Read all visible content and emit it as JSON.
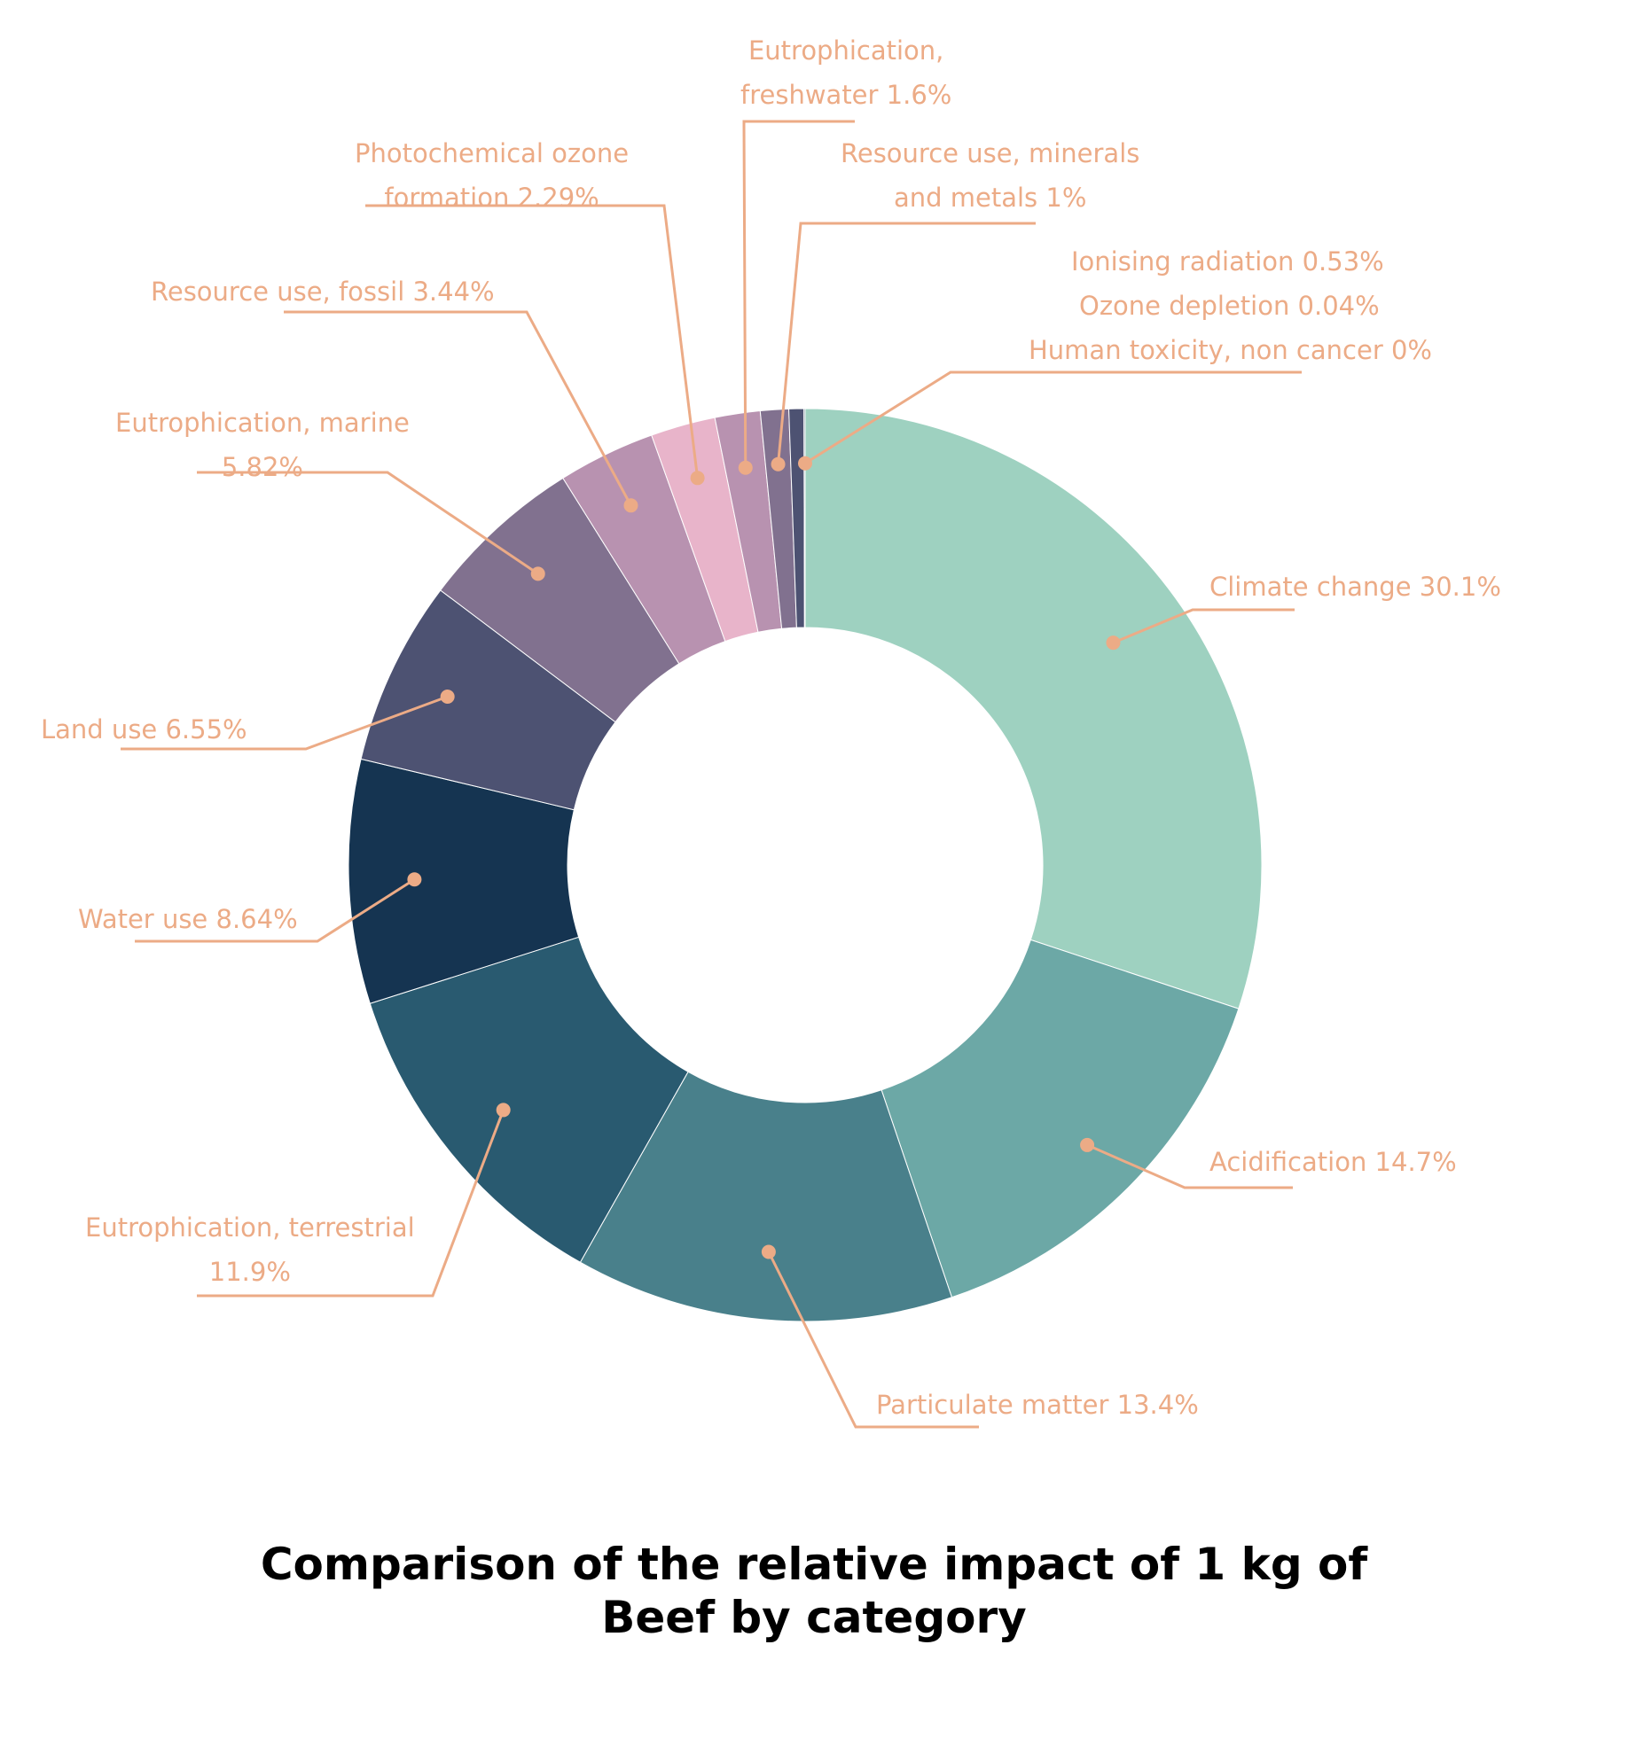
{
  "chart_data": {
    "type": "pie",
    "donut": true,
    "title_lines": [
      "Comparison of the relative impact of 1 kg of",
      "Beef by category"
    ],
    "label_color": "#ecab86",
    "slices": [
      {
        "category": "Climate change",
        "value": 30.1,
        "label_lines": [
          "Climate change 30.1%"
        ],
        "color": "#9ed1c0"
      },
      {
        "category": "Acidification",
        "value": 14.7,
        "label_lines": [
          "Acidification 14.7%"
        ],
        "color": "#6ca8a6"
      },
      {
        "category": "Particulate matter",
        "value": 13.4,
        "label_lines": [
          "Particulate matter 13.4%"
        ],
        "color": "#49808b"
      },
      {
        "category": "Eutrophication, terrestrial",
        "value": 11.9,
        "label_lines": [
          "Eutrophication, terrestrial",
          "11.9%"
        ],
        "color": "#295a70"
      },
      {
        "category": "Water use",
        "value": 8.64,
        "label_lines": [
          "Water use 8.64%"
        ],
        "color": "#153451"
      },
      {
        "category": "Land use",
        "value": 6.55,
        "label_lines": [
          "Land use 6.55%"
        ],
        "color": "#4d5272"
      },
      {
        "category": "Eutrophication, marine",
        "value": 5.82,
        "label_lines": [
          "Eutrophication, marine",
          "5.82%"
        ],
        "color": "#81718f"
      },
      {
        "category": "Resource use, fossil",
        "value": 3.44,
        "label_lines": [
          "Resource use, fossil 3.44%"
        ],
        "color": "#b892b0"
      },
      {
        "category": "Photochemical ozone formation",
        "value": 2.29,
        "label_lines": [
          "Photochemical ozone",
          "formation 2.29%"
        ],
        "color": "#e8b4ca"
      },
      {
        "category": "Eutrophication, freshwater",
        "value": 1.6,
        "label_lines": [
          "Eutrophication,",
          "freshwater 1.6%"
        ],
        "color": "#b892b0"
      },
      {
        "category": "Resource use, minerals and metals",
        "value": 1,
        "label_lines": [
          "Resource use, minerals",
          "and metals 1%"
        ],
        "color": "#81718f"
      },
      {
        "category": "Ionising radiation",
        "value": 0.53,
        "label_lines": [
          "Ionising radiation 0.53%"
        ],
        "color": "#4d5272"
      },
      {
        "category": "Ozone depletion",
        "value": 0.04,
        "label_lines": [
          "Ozone depletion 0.04%"
        ],
        "color": "#153451"
      },
      {
        "category": "Human toxicity, non cancer",
        "value": 0,
        "label_lines": [
          "Human toxicity, non cancer 0%"
        ],
        "color": "#153451"
      }
    ]
  }
}
